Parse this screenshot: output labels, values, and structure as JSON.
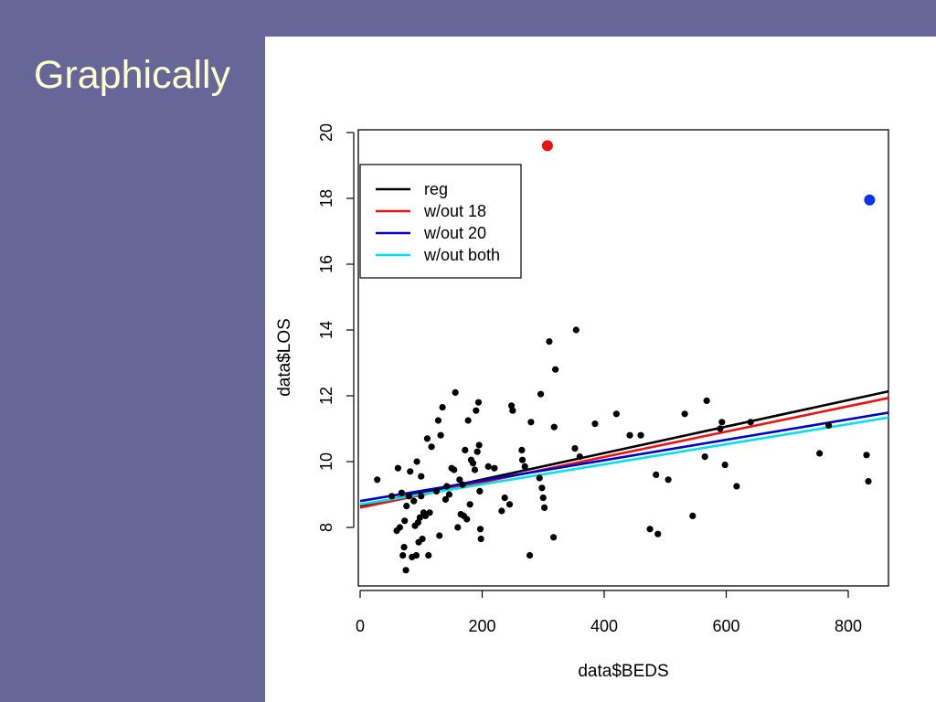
{
  "slide": {
    "title": "Graphically"
  },
  "colors": {
    "background": "#666699",
    "title": "#ffffcc",
    "panel": "#ffffff"
  },
  "chart_data": {
    "type": "scatter",
    "xlabel": "data$BEDS",
    "ylabel": "data$LOS",
    "xlim": [
      0,
      870
    ],
    "ylim": [
      6.2,
      20.1
    ],
    "xticks": [
      0,
      200,
      400,
      600,
      800
    ],
    "yticks": [
      8,
      10,
      12,
      14,
      16,
      18,
      20
    ],
    "legend_position": "top-left",
    "legend": [
      {
        "label": "reg",
        "color": "#000000"
      },
      {
        "label": "w/out 18",
        "color": "#ee1111"
      },
      {
        "label": "w/out 20",
        "color": "#0000cc"
      },
      {
        "label": "w/out both",
        "color": "#00e0ee"
      }
    ],
    "lines": [
      {
        "label": "reg",
        "color": "#000000",
        "x": [
          0,
          870
        ],
        "y": [
          8.65,
          12.15
        ]
      },
      {
        "label": "w/out 18",
        "color": "#ee1111",
        "x": [
          0,
          870
        ],
        "y": [
          8.6,
          11.95
        ]
      },
      {
        "label": "w/out 20",
        "color": "#0000cc",
        "x": [
          0,
          870
        ],
        "y": [
          8.8,
          11.5
        ]
      },
      {
        "label": "w/out both",
        "color": "#00e0ee",
        "x": [
          0,
          870
        ],
        "y": [
          8.7,
          11.35
        ]
      }
    ],
    "highlighted_points": [
      {
        "x": 307,
        "y": 19.6,
        "color": "#ee1111"
      },
      {
        "x": 835,
        "y": 17.95,
        "color": "#0033ee"
      }
    ],
    "points": [
      [
        28,
        9.45
      ],
      [
        52,
        8.95
      ],
      [
        60,
        7.9
      ],
      [
        62,
        9.8
      ],
      [
        65,
        8.0
      ],
      [
        68,
        9.05
      ],
      [
        70,
        7.15
      ],
      [
        72,
        7.4
      ],
      [
        73,
        8.2
      ],
      [
        75,
        6.7
      ],
      [
        76,
        8.65
      ],
      [
        80,
        8.95
      ],
      [
        82,
        9.7
      ],
      [
        85,
        7.1
      ],
      [
        88,
        8.8
      ],
      [
        90,
        8.05
      ],
      [
        92,
        7.15
      ],
      [
        93,
        10.0
      ],
      [
        95,
        8.15
      ],
      [
        96,
        7.55
      ],
      [
        98,
        8.3
      ],
      [
        100,
        9.55
      ],
      [
        100,
        8.95
      ],
      [
        102,
        7.65
      ],
      [
        104,
        8.45
      ],
      [
        107,
        8.35
      ],
      [
        110,
        10.7
      ],
      [
        112,
        7.15
      ],
      [
        114,
        8.45
      ],
      [
        117,
        10.45
      ],
      [
        125,
        9.1
      ],
      [
        128,
        11.25
      ],
      [
        130,
        7.75
      ],
      [
        132,
        10.8
      ],
      [
        135,
        11.65
      ],
      [
        140,
        8.85
      ],
      [
        142,
        9.25
      ],
      [
        146,
        9.0
      ],
      [
        150,
        9.8
      ],
      [
        154,
        9.75
      ],
      [
        156,
        12.1
      ],
      [
        160,
        8.0
      ],
      [
        163,
        9.45
      ],
      [
        165,
        8.4
      ],
      [
        168,
        9.3
      ],
      [
        170,
        8.35
      ],
      [
        172,
        10.35
      ],
      [
        175,
        8.25
      ],
      [
        177,
        11.25
      ],
      [
        180,
        8.7
      ],
      [
        182,
        10.05
      ],
      [
        185,
        9.95
      ],
      [
        188,
        9.75
      ],
      [
        190,
        11.55
      ],
      [
        192,
        10.3
      ],
      [
        194,
        11.8
      ],
      [
        195,
        10.5
      ],
      [
        196,
        9.1
      ],
      [
        197,
        7.95
      ],
      [
        198,
        7.65
      ],
      [
        210,
        9.85
      ],
      [
        220,
        9.8
      ],
      [
        232,
        8.5
      ],
      [
        237,
        8.9
      ],
      [
        245,
        8.7
      ],
      [
        248,
        11.7
      ],
      [
        250,
        11.55
      ],
      [
        265,
        10.35
      ],
      [
        266,
        10.05
      ],
      [
        270,
        9.85
      ],
      [
        278,
        7.15
      ],
      [
        280,
        11.2
      ],
      [
        294,
        9.5
      ],
      [
        296,
        12.05
      ],
      [
        298,
        9.2
      ],
      [
        300,
        8.9
      ],
      [
        302,
        8.6
      ],
      [
        310,
        13.65
      ],
      [
        317,
        7.7
      ],
      [
        318,
        11.05
      ],
      [
        320,
        12.8
      ],
      [
        352,
        10.4
      ],
      [
        354,
        14.0
      ],
      [
        360,
        10.15
      ],
      [
        385,
        11.15
      ],
      [
        420,
        11.45
      ],
      [
        442,
        10.8
      ],
      [
        460,
        10.8
      ],
      [
        475,
        7.95
      ],
      [
        485,
        9.6
      ],
      [
        488,
        7.8
      ],
      [
        505,
        9.45
      ],
      [
        532,
        11.45
      ],
      [
        545,
        8.35
      ],
      [
        565,
        10.15
      ],
      [
        568,
        11.85
      ],
      [
        590,
        11.0
      ],
      [
        593,
        11.2
      ],
      [
        598,
        9.9
      ],
      [
        617,
        9.25
      ],
      [
        640,
        11.2
      ],
      [
        753,
        10.25
      ],
      [
        768,
        11.1
      ],
      [
        830,
        10.2
      ],
      [
        833,
        9.4
      ]
    ]
  }
}
